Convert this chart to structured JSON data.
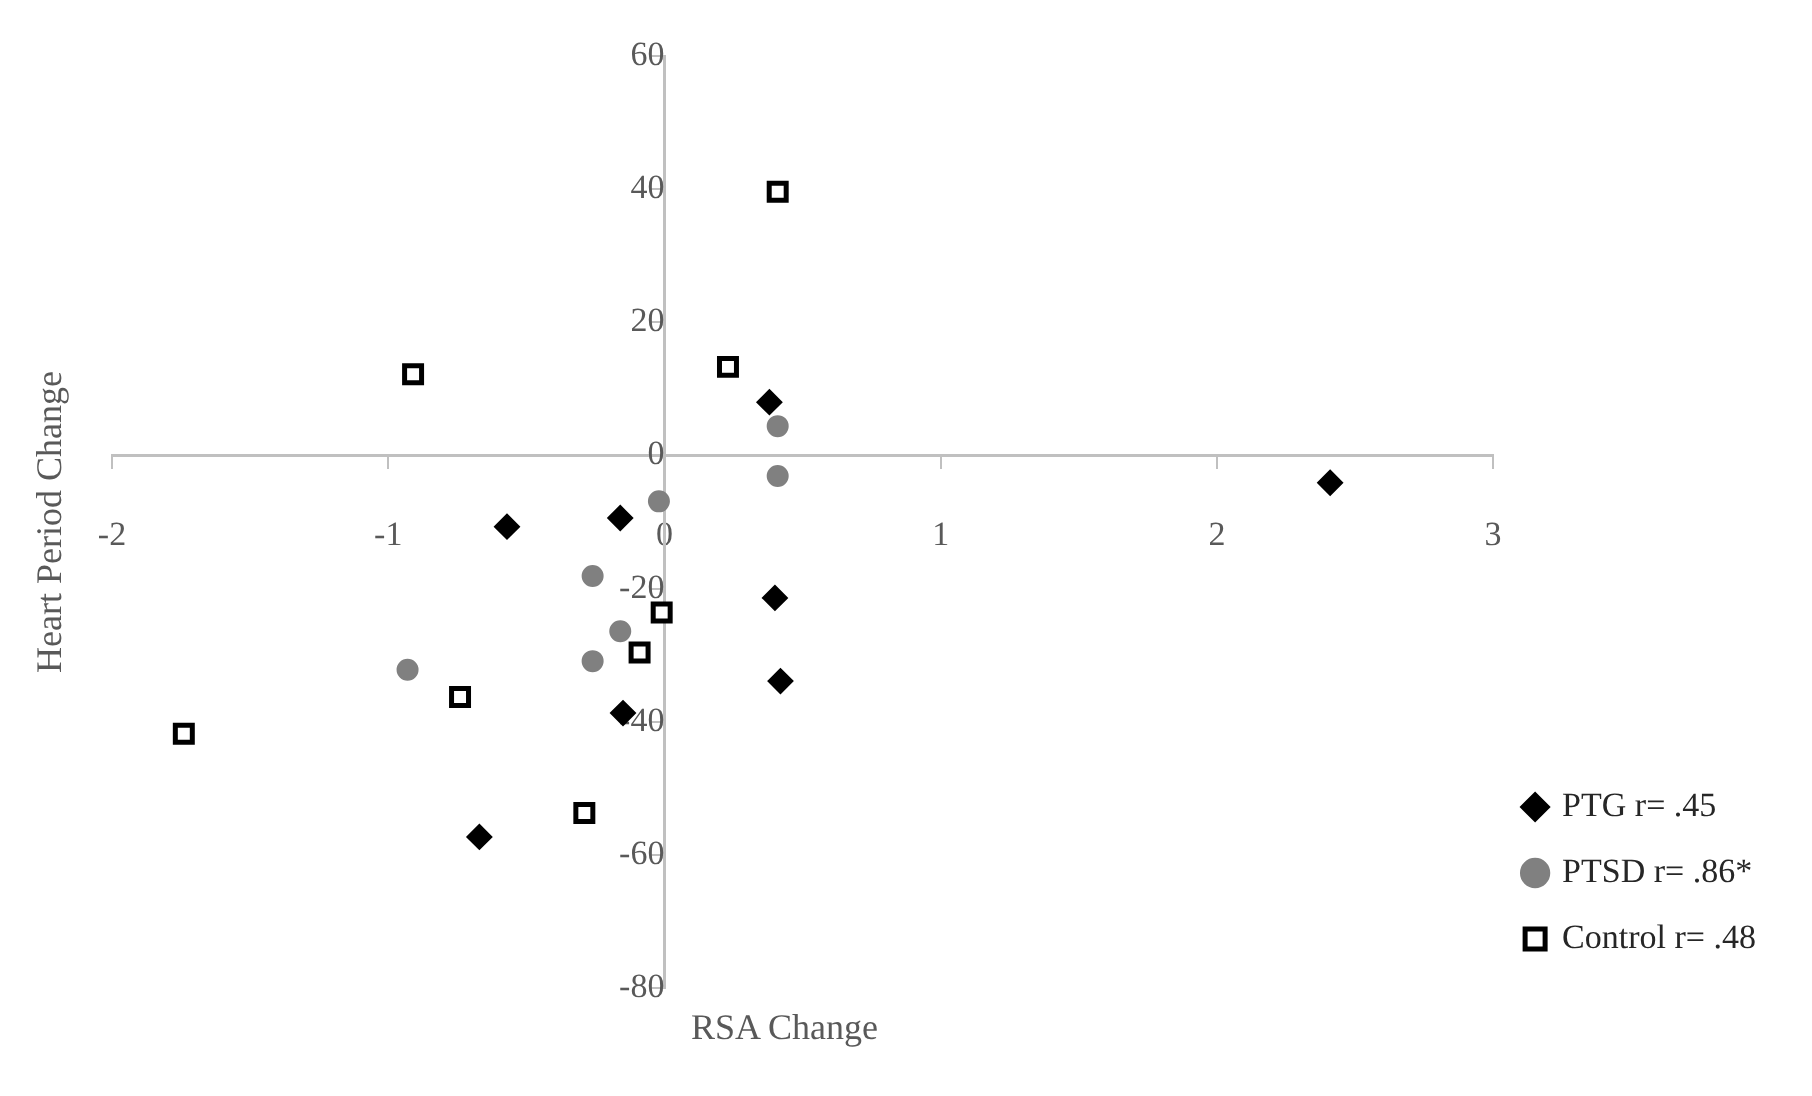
{
  "chart_data": {
    "type": "scatter",
    "xlabel": "RSA Change",
    "ylabel": "Heart Period Change",
    "xlim": [
      -2,
      3
    ],
    "ylim": [
      -80,
      60
    ],
    "xticks": [
      -2,
      -1,
      0,
      1,
      2,
      3
    ],
    "yticks": [
      -80,
      -60,
      -40,
      -20,
      0,
      20,
      40,
      60
    ],
    "grid": false,
    "legend": "right",
    "series": [
      {
        "name": "PTG r= .45",
        "color": "#000000",
        "marker": "diamond",
        "x": [
          0.38,
          2.41,
          -0.57,
          -0.16,
          0.4,
          0.42,
          -0.15,
          -0.67
        ],
        "values": [
          8.0,
          -4.1,
          -10.7,
          -9.4,
          -21.4,
          -33.9,
          -38.7,
          -57.3
        ]
      },
      {
        "name": "PTSD r= .86*",
        "color": "#808080",
        "marker": "circle",
        "x": [
          0.41,
          0.41,
          -0.02,
          -0.26,
          -0.16,
          -0.26,
          -0.93
        ],
        "values": [
          4.4,
          -3.1,
          -6.9,
          -18.1,
          -26.4,
          -30.9,
          -32.2
        ]
      },
      {
        "name": "Control r= .48",
        "color": "#000000",
        "marker": "square",
        "x": [
          0.41,
          0.23,
          -0.91,
          -0.01,
          -0.09,
          -0.74,
          -1.74,
          -0.29
        ],
        "values": [
          39.6,
          13.3,
          12.2,
          -23.6,
          -29.6,
          -36.3,
          -41.8,
          -53.7
        ]
      }
    ]
  }
}
